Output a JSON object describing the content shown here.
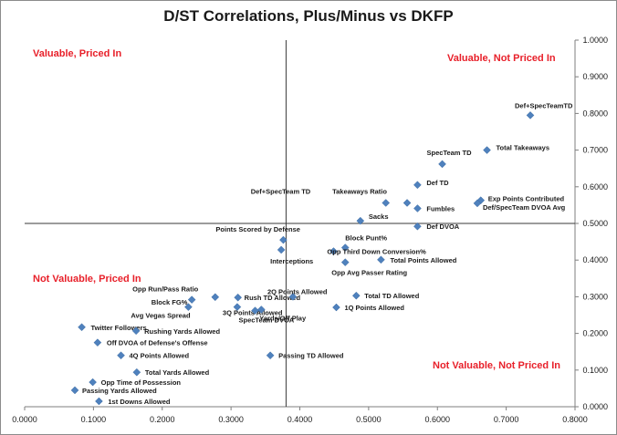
{
  "chart_data": {
    "type": "scatter",
    "title": "D/ST Correlations, Plus/Minus vs DKFP",
    "xlabel": "",
    "ylabel": "",
    "xlim": [
      0,
      0.8
    ],
    "ylim": [
      0,
      1
    ],
    "x_ticks": [
      "0.0000",
      "0.1000",
      "0.2000",
      "0.3000",
      "0.4000",
      "0.5000",
      "0.6000",
      "0.7000",
      "0.8000"
    ],
    "y_ticks": [
      "0.0000",
      "0.1000",
      "0.2000",
      "0.3000",
      "0.4000",
      "0.5000",
      "0.6000",
      "0.7000",
      "0.8000",
      "0.9000",
      "1.0000"
    ],
    "grid": false,
    "reference_lines": {
      "x": 0.38,
      "y": 0.5
    },
    "marker_color": "#4f81bd",
    "quadrant_color": "#e8202a",
    "quadrant_labels": {
      "top_left": "Valuable, Priced In",
      "top_right": "Valuable, Not Priced In",
      "bottom_left": "Not Valuable, Priced In",
      "bottom_right": "Not Valuable, Not Priced In"
    },
    "points": [
      {
        "label": "Def+SpecTeamTD",
        "x": 0.735,
        "y": 0.795
      },
      {
        "label": "Total Takeaways",
        "x": 0.672,
        "y": 0.7
      },
      {
        "label": "SpecTeam TD",
        "x": 0.607,
        "y": 0.662
      },
      {
        "label": "Def TD",
        "x": 0.571,
        "y": 0.605
      },
      {
        "label": "Def+SpecTeam TD",
        "x": 0.525,
        "y": 0.556
      },
      {
        "label": "Takeaways Ratio",
        "x": 0.556,
        "y": 0.556
      },
      {
        "label": "Exp Points Contributed",
        "x": 0.663,
        "y": 0.563
      },
      {
        "label": "Def/SpecTeam DVOA Avg",
        "x": 0.658,
        "y": 0.555
      },
      {
        "label": "Fumbles",
        "x": 0.571,
        "y": 0.541
      },
      {
        "label": "Sacks",
        "x": 0.488,
        "y": 0.507
      },
      {
        "label": "Def DVOA",
        "x": 0.571,
        "y": 0.492
      },
      {
        "label": "Points Scored by Defense",
        "x": 0.376,
        "y": 0.455
      },
      {
        "label": "Block Punt%",
        "x": 0.466,
        "y": 0.434
      },
      {
        "label": "Interceptions",
        "x": 0.373,
        "y": 0.428
      },
      {
        "label": "Opp Third Down Conversion%",
        "x": 0.449,
        "y": 0.424
      },
      {
        "label": "Total Points Allowed",
        "x": 0.518,
        "y": 0.401
      },
      {
        "label": "Opp Avg Passer Rating",
        "x": 0.466,
        "y": 0.394
      },
      {
        "label": "Opp Run/Pass Ratio",
        "x": 0.243,
        "y": 0.292
      },
      {
        "label": "Block FG%",
        "x": 0.277,
        "y": 0.299
      },
      {
        "label": "Avg Vegas Spread",
        "x": 0.238,
        "y": 0.272
      },
      {
        "label": "Rush TD Allowed",
        "x": 0.31,
        "y": 0.298
      },
      {
        "label": "3Q Points Allowed",
        "x": 0.309,
        "y": 0.272
      },
      {
        "label": "SpecTeam DVOA",
        "x": 0.335,
        "y": 0.262
      },
      {
        "label": "Yards/Off Play",
        "x": 0.344,
        "y": 0.265
      },
      {
        "label": "2Q Points Allowed",
        "x": 0.39,
        "y": 0.3
      },
      {
        "label": "Total TD Allowed",
        "x": 0.482,
        "y": 0.303
      },
      {
        "label": "1Q Points Allowed",
        "x": 0.453,
        "y": 0.271
      },
      {
        "label": "Twitter Followers",
        "x": 0.083,
        "y": 0.217
      },
      {
        "label": "Rushing Yards Allowed",
        "x": 0.162,
        "y": 0.207
      },
      {
        "label": "Off DVOA of Defense's Offense",
        "x": 0.106,
        "y": 0.175
      },
      {
        "label": "4Q Points Allowed",
        "x": 0.14,
        "y": 0.14
      },
      {
        "label": "Passing TD Allowed",
        "x": 0.357,
        "y": 0.14
      },
      {
        "label": "Total Yards Allowed",
        "x": 0.163,
        "y": 0.094
      },
      {
        "label": "Opp Time of Possession",
        "x": 0.099,
        "y": 0.067
      },
      {
        "label": "Passing Yards Allowed",
        "x": 0.073,
        "y": 0.045
      },
      {
        "label": "1st Downs Allowed",
        "x": 0.108,
        "y": 0.015
      }
    ]
  }
}
